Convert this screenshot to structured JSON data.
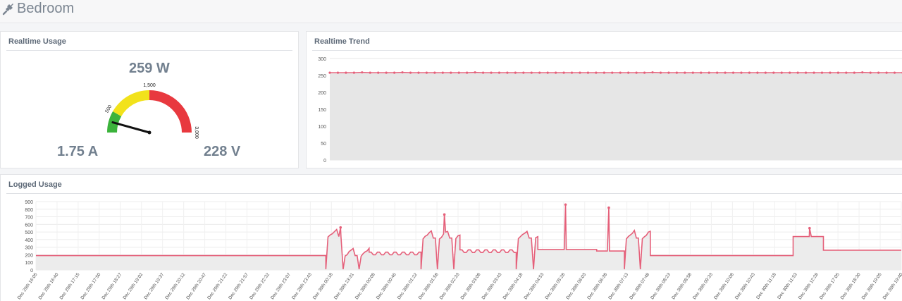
{
  "header": {
    "title": "Bedroom",
    "icon": "plug-icon"
  },
  "realtime_usage": {
    "title": "Realtime Usage",
    "power": "259 W",
    "current": "1.75 A",
    "voltage": "228 V",
    "gauge": {
      "min": 0,
      "max": 3000,
      "value": 259,
      "ticks": [
        "500",
        "1,500",
        "3,000"
      ],
      "green_to": 500,
      "yellow_to": 1500,
      "colors": {
        "green": "#3bb33b",
        "yellow": "#f2e21b",
        "red": "#e8393f"
      }
    }
  },
  "realtime_trend": {
    "title": "Realtime Trend",
    "chart_data": {
      "type": "line",
      "ylim": [
        0,
        300
      ],
      "yticks": [
        "0",
        "50",
        "100",
        "150",
        "200",
        "250",
        "300"
      ],
      "values": [
        258,
        258,
        258,
        258,
        259,
        258,
        258,
        258,
        258,
        259,
        258,
        258,
        258,
        258,
        258,
        258,
        258,
        258,
        259,
        258,
        258,
        258,
        258,
        258,
        258,
        258,
        258,
        258,
        258,
        258,
        258,
        258,
        258,
        258,
        258,
        258,
        258,
        258,
        258,
        258,
        259,
        258,
        258,
        258,
        258,
        258,
        258,
        258,
        258,
        258,
        258,
        258,
        258,
        258,
        258,
        258,
        258,
        258,
        258,
        258,
        258,
        258,
        258,
        258,
        258,
        258,
        259,
        258,
        258,
        258,
        258,
        258
      ],
      "color": "#e5607a"
    }
  },
  "logged_usage": {
    "title": "Logged Usage",
    "chart_data": {
      "type": "area",
      "ylim": [
        0,
        900
      ],
      "yticks": [
        "0",
        "100",
        "200",
        "300",
        "400",
        "500",
        "600",
        "700",
        "800",
        "900"
      ],
      "x": [
        "Dec 29th 16:05",
        "Dec 29th 16:40",
        "Dec 29th 17:15",
        "Dec 29th 17:50",
        "Dec 29th 18:27",
        "Dec 29th 19:02",
        "Dec 29th 19:37",
        "Dec 29th 20:12",
        "Dec 29th 20:47",
        "Dec 29th 21:22",
        "Dec 29th 21:57",
        "Dec 29th 22:32",
        "Dec 29th 23:07",
        "Dec 29th 23:43",
        "Dec 30th 00:18",
        "Dec 30th 23:31",
        "Dec 30th 00:08",
        "Dec 30th 00:46",
        "Dec 30th 01:22",
        "Dec 30th 01:58",
        "Dec 30th 02:33",
        "Dec 30th 03:08",
        "Dec 30th 03:43",
        "Dec 30th 04:18",
        "Dec 30th 04:53",
        "Dec 30th 05:28",
        "Dec 30th 06:03",
        "Dec 30th 06:38",
        "Dec 30th 07:13",
        "Dec 30th 07:48",
        "Dec 30th 08:23",
        "Dec 30th 08:58",
        "Dec 30th 09:33",
        "Dec 30th 10:08",
        "Dec 30th 10:43",
        "Dec 30th 11:18",
        "Dec 30th 11:53",
        "Dec 30th 12:28",
        "Dec 30th 17:05",
        "Dec 30th 18:30",
        "Dec 30th 19:05",
        "Dec 30th 19:40"
      ],
      "segments": [
        {
          "from": 0,
          "to": 0.292,
          "level": 190
        },
        {
          "from": 0.292,
          "to": 0.335,
          "level": 190
        },
        {
          "from": 0.335,
          "to": 0.355,
          "level": 440,
          "spiky": true
        },
        {
          "from": 0.355,
          "to": 0.385,
          "level": 190,
          "spiky": true
        },
        {
          "from": 0.385,
          "to": 0.445,
          "level": 200,
          "bumps": true
        },
        {
          "from": 0.445,
          "to": 0.49,
          "level": 420,
          "spiky": true
        },
        {
          "from": 0.49,
          "to": 0.555,
          "level": 230,
          "bumps": true
        },
        {
          "from": 0.555,
          "to": 0.58,
          "level": 420,
          "spiky": true
        },
        {
          "from": 0.58,
          "to": 0.648,
          "level": 270
        },
        {
          "from": 0.648,
          "to": 0.68,
          "level": 250
        },
        {
          "from": 0.68,
          "to": 0.71,
          "level": 420,
          "spiky": true
        },
        {
          "from": 0.71,
          "to": 0.875,
          "level": 190
        },
        {
          "from": 0.875,
          "to": 0.91,
          "level": 440
        },
        {
          "from": 0.91,
          "to": 1,
          "level": 260
        }
      ],
      "peaks": [
        {
          "x": 0.352,
          "y": 560
        },
        {
          "x": 0.472,
          "y": 730
        },
        {
          "x": 0.612,
          "y": 860
        },
        {
          "x": 0.662,
          "y": 820
        },
        {
          "x": 0.894,
          "y": 550
        }
      ],
      "color": "#e5607a"
    }
  }
}
